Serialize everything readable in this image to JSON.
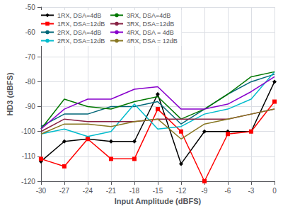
{
  "chart_data": {
    "type": "line",
    "x_label": "Input Amplitude (dBFS)",
    "y_label": "HD3 (dBFS)",
    "x": [
      -30,
      -27,
      -24,
      -21,
      -18,
      -15,
      -12,
      -9,
      -6,
      -3,
      0
    ],
    "series": [
      {
        "name": "1RX, DSA=4dB",
        "color": "#000000",
        "marker": "diamond",
        "values": [
          -112,
          -104,
          -103,
          -104,
          -104,
          -85,
          -113,
          -100,
          -100,
          -100,
          -80
        ]
      },
      {
        "name": "1RX, DSA=12dB",
        "color": "#ff0000",
        "marker": "square",
        "values": [
          -111,
          -114,
          -103,
          -111,
          -111,
          -91,
          -100,
          -120,
          -101,
          -100,
          -88
        ]
      },
      {
        "name": "2RX, DSA=4dB",
        "color": "#006677",
        "marker": "none",
        "values": [
          -98,
          -93,
          -93,
          -90,
          -90,
          -88,
          -97,
          -91,
          -85,
          -80,
          -77
        ]
      },
      {
        "name": "2RX, DSA=12dB",
        "color": "#00bbcc",
        "marker": "none",
        "values": [
          -101,
          -99,
          -102,
          -100,
          -89,
          -99,
          -98,
          -93,
          -91,
          -87,
          -76
        ]
      },
      {
        "name": "3RX, DSA=4dB",
        "color": "#007700",
        "marker": "none",
        "values": [
          -99,
          -87,
          -90,
          -91,
          -88,
          -86,
          -95,
          -91,
          -85,
          -78,
          -76
        ]
      },
      {
        "name": "3RX, DSA=12dB",
        "color": "#882244",
        "marker": "none",
        "values": [
          -100,
          -95,
          -96,
          -96,
          -96,
          -95,
          -95,
          -95,
          -95,
          -93,
          -91
        ]
      },
      {
        "name": "4RX, DSA = 4dB",
        "color": "#8800cc",
        "marker": "none",
        "values": [
          -99,
          -91,
          -87,
          -87,
          -83,
          -82,
          -91,
          -91,
          -89,
          -84,
          -78
        ]
      },
      {
        "name": "4RX, DSA = 12dB",
        "color": "#887722",
        "marker": "none",
        "values": [
          -101,
          -97,
          -97,
          -98,
          -96,
          -95,
          -103,
          -97,
          -95,
          -93,
          -91
        ]
      }
    ],
    "xlim": [
      -30,
      0
    ],
    "xticks": [
      -30,
      -27,
      -24,
      -21,
      -18,
      -15,
      -12,
      -9,
      -6,
      -3,
      0
    ],
    "ylim": [
      -120,
      -50
    ],
    "yticks": [
      -120,
      -110,
      -100,
      -90,
      -80,
      -70,
      -60,
      -50
    ],
    "grid": true,
    "legend": "upper left"
  }
}
